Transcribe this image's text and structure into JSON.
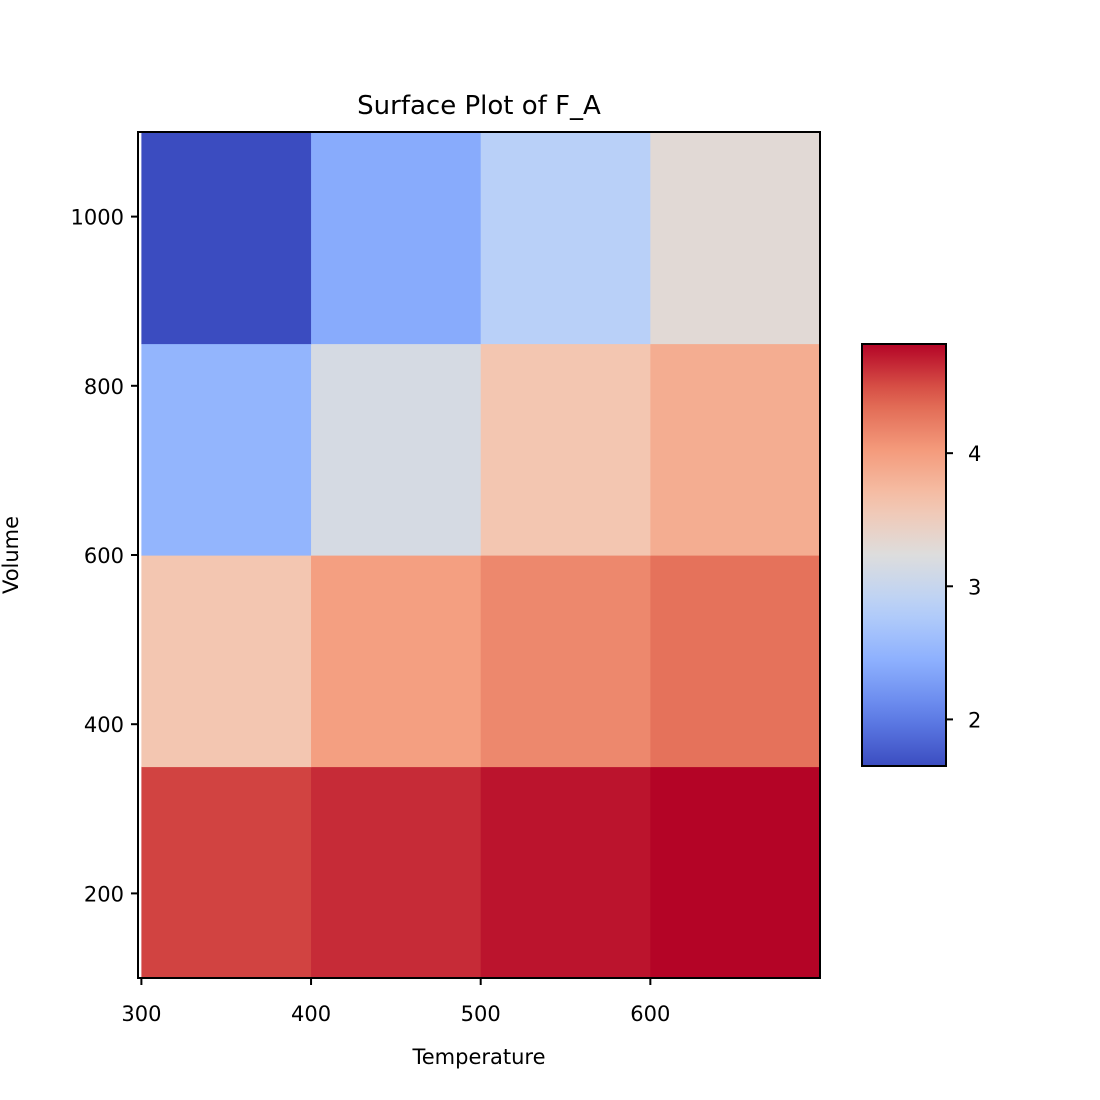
{
  "chart_data": {
    "type": "heatmap",
    "title": "Surface Plot of F_A",
    "xlabel": "Temperature",
    "ylabel": "Volume",
    "x_edges": [
      300,
      400,
      500,
      600,
      700
    ],
    "y_edges": [
      100,
      350,
      600,
      850,
      1100
    ],
    "xlim": [
      298,
      700
    ],
    "ylim": [
      100,
      1100
    ],
    "x_ticks": [
      300,
      400,
      500,
      600
    ],
    "y_ticks": [
      200,
      400,
      600,
      800,
      1000
    ],
    "values": [
      [
        4.55,
        4.65,
        4.75,
        4.82
      ],
      [
        3.6,
        3.98,
        4.15,
        4.3
      ],
      [
        2.5,
        3.15,
        3.6,
        3.85
      ],
      [
        1.65,
        2.4,
        2.85,
        3.3
      ]
    ],
    "colormap": "coolwarm",
    "colorbar": {
      "range": [
        1.65,
        4.82
      ],
      "ticks": [
        2,
        3,
        4
      ],
      "placement": "right"
    },
    "grid": false
  }
}
